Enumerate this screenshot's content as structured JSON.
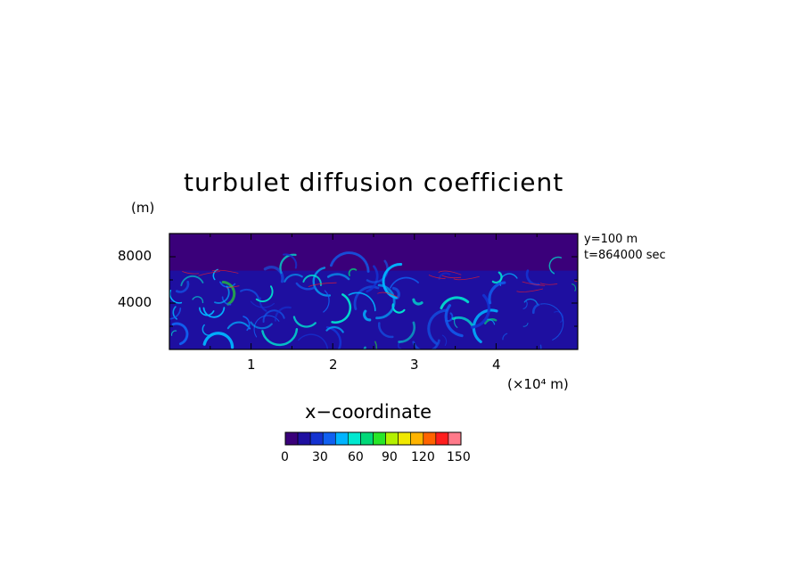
{
  "chart_data": {
    "type": "heatmap",
    "title": "turbulet diffusion coefficient",
    "xlabel": "x−coordinate",
    "x_unit": "(×10⁴ m)",
    "y_unit": "(m)",
    "x_ticks": [
      "1",
      "2",
      "3",
      "4"
    ],
    "y_ticks": [
      "8000",
      "4000"
    ],
    "xlim": [
      0,
      5
    ],
    "ylim": [
      0,
      10000
    ],
    "annotations": [
      "y=100 m",
      "t=864000 sec"
    ],
    "colorbar": {
      "ticks": [
        "0",
        "30",
        "60",
        "90",
        "120",
        "150"
      ],
      "range": [
        0,
        150
      ],
      "colors": [
        "#3a007a",
        "#1e0fa0",
        "#1432d0",
        "#1060f0",
        "#00b4ff",
        "#00e8d0",
        "#00d878",
        "#28e628",
        "#b4f000",
        "#f0e800",
        "#ffb400",
        "#ff6400",
        "#ff1e1e",
        "#ff7a8a"
      ]
    },
    "field": {
      "upper_layer_value": 5,
      "upper_layer_top": 10000,
      "boundary_height": 6800,
      "lower_layer_background": 15,
      "eddy_values_range": [
        30,
        90
      ]
    }
  }
}
